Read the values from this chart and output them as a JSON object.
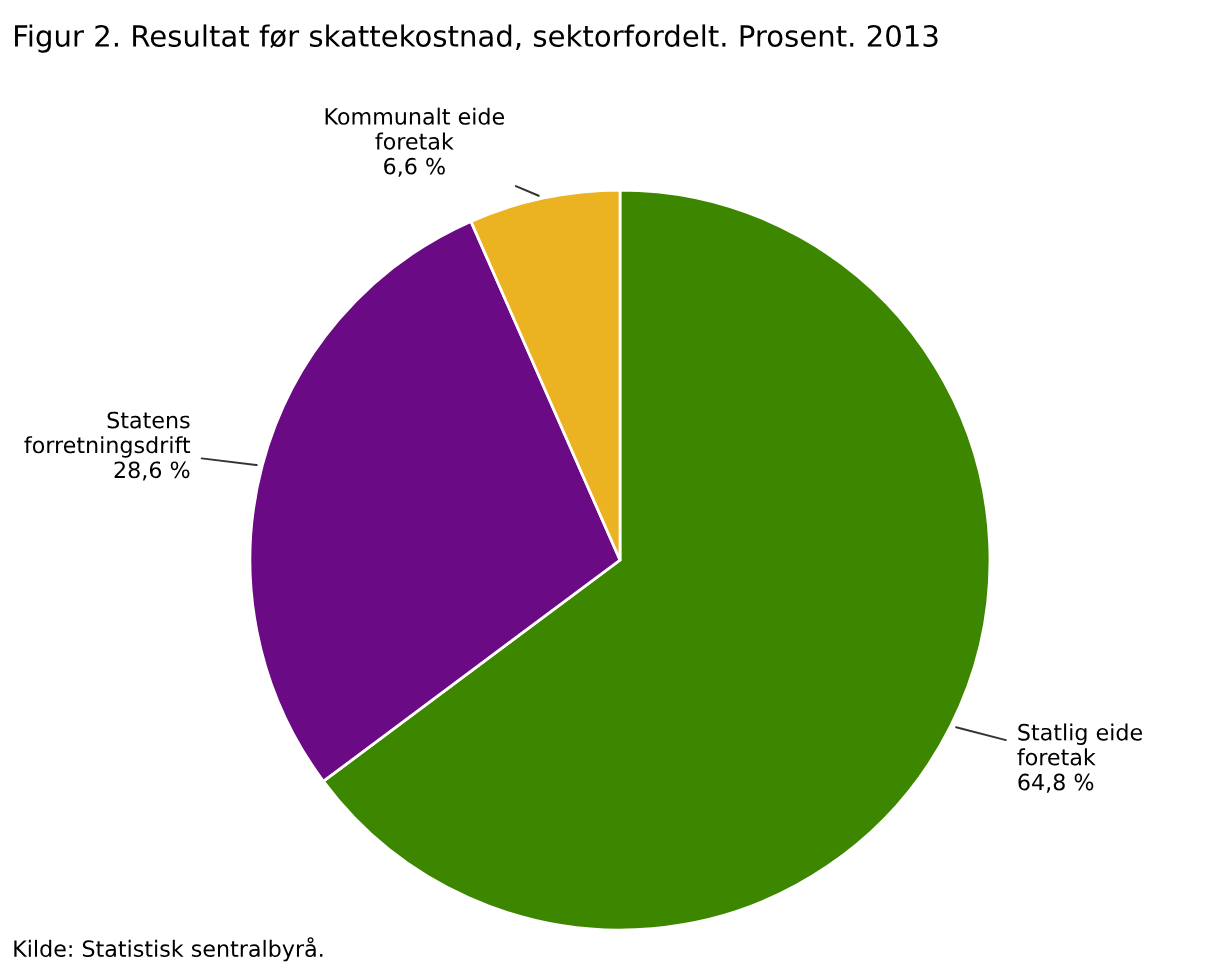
{
  "chart_data": {
    "type": "pie",
    "title": "Figur 2. Resultat før skattekostnad, sektorfordelt. Prosent. 2013",
    "categories": [
      "Statlig eide\nforetak",
      "Statens\nforretningsdrift",
      "Kommunalt eide\nforetak"
    ],
    "values": [
      64.8,
      28.6,
      6.6
    ],
    "colors": [
      "#3d8700",
      "#6a0a85",
      "#ebb321"
    ],
    "value_labels": [
      "64,8 %",
      "28,6 %",
      "6,6 %"
    ],
    "legend": false,
    "annotations": [
      "Kilde: Statistisk sentralbyrå."
    ]
  }
}
